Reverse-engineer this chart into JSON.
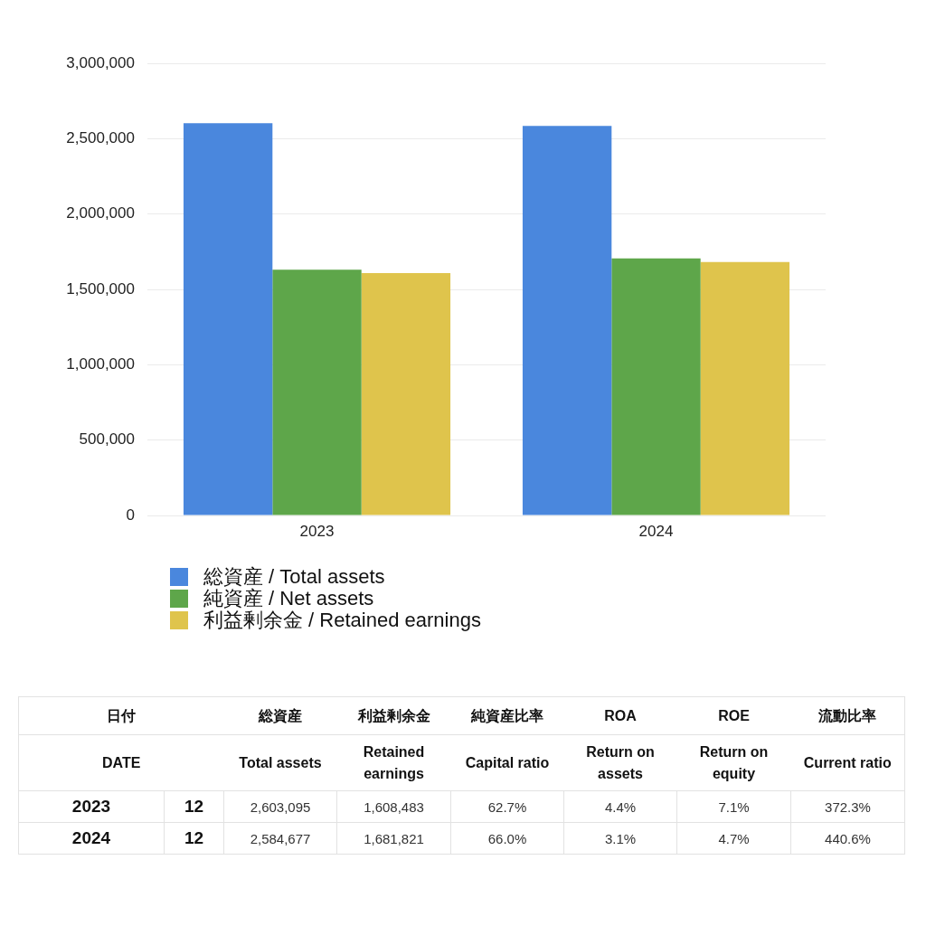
{
  "chart_data": [
    {
      "type": "bar",
      "categories": [
        "2023",
        "2024"
      ],
      "series": [
        {
          "name": "総資産 / Total assets",
          "color": "#4a87dd",
          "values": [
            2603095,
            2584677
          ]
        },
        {
          "name": "純資産 / Net assets",
          "color": "#5ea64a",
          "values": [
            1630000,
            1705000
          ]
        },
        {
          "name": "利益剰余金 / Retained earnings",
          "color": "#dfc44c",
          "values": [
            1608483,
            1681821
          ]
        }
      ],
      "ylim": [
        0,
        3000000
      ],
      "yticks": [
        0,
        {
          "value": 500000,
          "label": "500,000"
        },
        {
          "value": 1000000,
          "label": "1,000,000"
        },
        {
          "value": 1500000,
          "label": "1,500,000"
        },
        {
          "value": 2000000,
          "label": "2,000,000"
        },
        {
          "value": 2500000,
          "label": "2,500,000"
        },
        {
          "value": 3000000,
          "label": "3,000,000"
        }
      ],
      "grid": "y",
      "legend": "bottom"
    },
    {
      "type": "other",
      "annotations": [
        "日付",
        "総資産",
        "利益剰余金",
        "純資産比率",
        "ROA",
        "ROE",
        "流動比率",
        "DATE",
        "Total assets",
        "Retained earnings",
        "Capital ratio",
        "Return on assets",
        "Return on equity",
        "Current ratio",
        "2023",
        "12",
        "2,603,095",
        "1,608,483",
        "62.7%",
        "4.4%",
        "7.1%",
        "372.3%",
        "2024",
        "12",
        "2,584,677",
        "1,681,821",
        "66.0%",
        "3.1%",
        "4.7%",
        "440.6%"
      ]
    }
  ]
}
